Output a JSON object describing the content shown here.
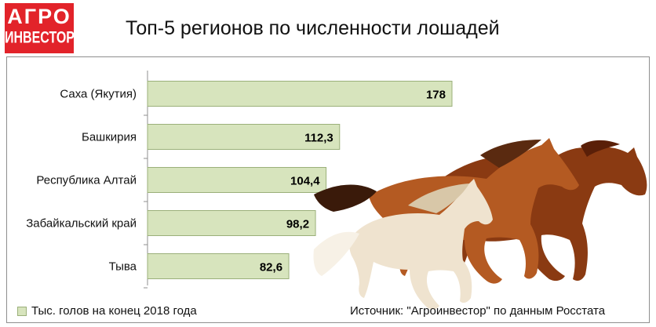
{
  "logo": {
    "line1": "АГРО",
    "line2": "ИНВЕСТОР"
  },
  "header": {
    "title": "Топ-5 регионов по численности лошадей"
  },
  "chart_data": {
    "type": "bar",
    "orientation": "horizontal",
    "title": "Топ-5 регионов по численности лошадей",
    "categories": [
      "Саха (Якутия)",
      "Башкирия",
      "Республика Алтай",
      "Забайкальский край",
      "Тыва"
    ],
    "series": [
      {
        "name": "Тыс. голов на конец 2018 года",
        "values": [
          178,
          112.3,
          104.4,
          98.2,
          82.6
        ],
        "labels": [
          "178",
          "112,3",
          "104,4",
          "98,2",
          "82,6"
        ]
      }
    ],
    "xlim": [
      0,
      178
    ],
    "grid": false,
    "legend_position": "bottom-left",
    "bar_color": "#d7e4bd",
    "bar_edge_color": "#9bb07a"
  },
  "legend": {
    "label": "Тыс. голов на конец 2018 года"
  },
  "source": {
    "text": "Источник: \"Агроинвестор\" по данным Росстата"
  },
  "illustration": {
    "icon": "running-horses-icon"
  }
}
